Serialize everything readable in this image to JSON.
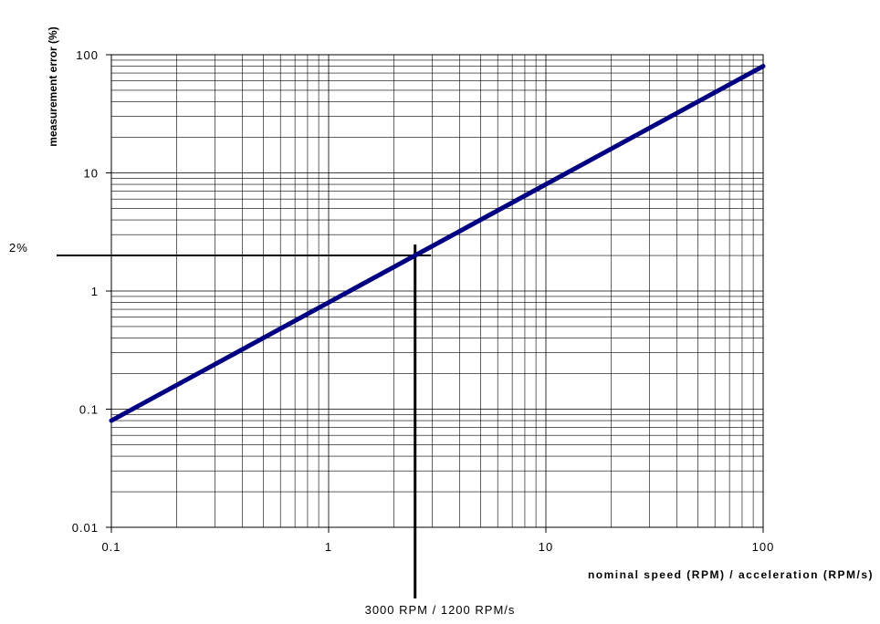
{
  "chart_data": {
    "type": "line",
    "x_scale": "log",
    "y_scale": "log",
    "xlim": [
      0.1,
      100
    ],
    "ylim": [
      0.01,
      100
    ],
    "grid": true,
    "xlabel": "nominal speed (RPM) / acceleration  (RPM/s)",
    "ylabel": "measurement error (%)",
    "x_tick_labels": [
      "0.1",
      "1",
      "10",
      "100"
    ],
    "y_tick_labels": [
      "0.01",
      "0.1",
      "1",
      "10",
      "100"
    ],
    "series": [
      {
        "color": "#000080",
        "x": [
          0.1,
          100
        ],
        "y": [
          0.08,
          80
        ]
      }
    ],
    "annotations": {
      "horizontal_marker": {
        "y": 2,
        "label": "2%"
      },
      "vertical_marker": {
        "x": 2.5,
        "label": "3000 RPM / 1200 RPM/s"
      }
    }
  }
}
